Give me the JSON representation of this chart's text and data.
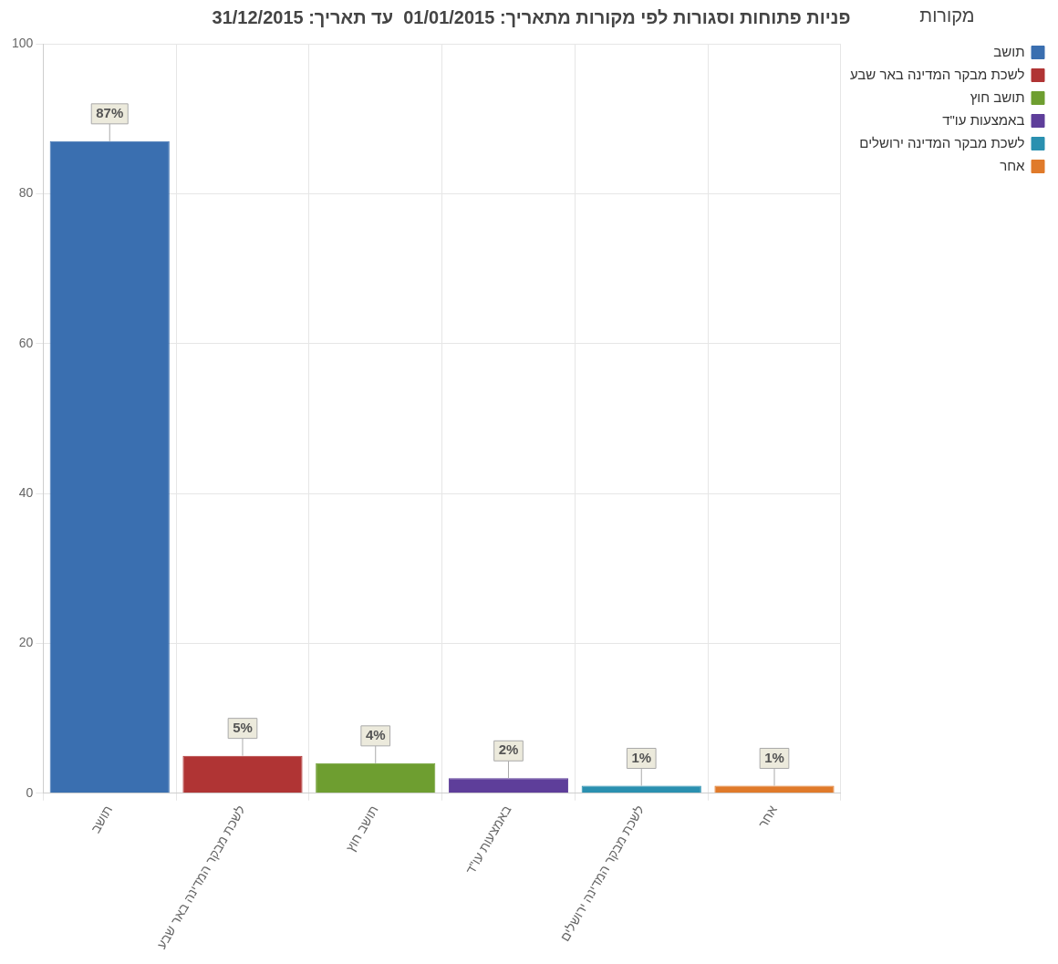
{
  "chart_data": {
    "type": "bar",
    "title": "פניות פתוחות וסגורות לפי מקורות מתאריך: 01/01/2015  עד תאריך: 31/12/2015",
    "categories": [
      "תושב",
      "לשכת מבקר המדינה באר שבע",
      "תושב חוץ",
      "באמצעות עו\"ד",
      "לשכת מבקר המדינה ירושלים",
      "אחר"
    ],
    "series": [
      {
        "name": "תושב",
        "color": "#3a6fb0",
        "values": [
          87,
          null,
          null,
          null,
          null,
          null
        ],
        "value_labels": [
          "87%",
          null,
          null,
          null,
          null,
          null
        ]
      },
      {
        "name": "לשכת מבקר המדינה באר שבע",
        "color": "#b03434",
        "values": [
          null,
          5,
          null,
          null,
          null,
          null
        ],
        "value_labels": [
          null,
          "5%",
          null,
          null,
          null,
          null
        ]
      },
      {
        "name": "תושב חוץ",
        "color": "#6e9e30",
        "values": [
          null,
          null,
          4,
          null,
          null,
          null
        ],
        "value_labels": [
          null,
          null,
          "4%",
          null,
          null,
          null
        ]
      },
      {
        "name": "באמצעות עו\"ד",
        "color": "#5e3e9a",
        "values": [
          null,
          null,
          null,
          2,
          null,
          null
        ],
        "value_labels": [
          null,
          null,
          null,
          "2%",
          null,
          null
        ]
      },
      {
        "name": "לשכת מבקר המדינה ירושלים",
        "color": "#2a90b0",
        "values": [
          null,
          null,
          null,
          null,
          1,
          null
        ],
        "value_labels": [
          null,
          null,
          null,
          null,
          "1%",
          null
        ]
      },
      {
        "name": "אחר",
        "color": "#e07a2a",
        "values": [
          null,
          null,
          null,
          null,
          null,
          1
        ],
        "value_labels": [
          null,
          null,
          null,
          null,
          null,
          "1%"
        ]
      }
    ],
    "ylim": [
      0,
      100
    ],
    "yticks": [
      0,
      20,
      40,
      60,
      80,
      100
    ],
    "grid": true,
    "legend": "top right",
    "legend_title": "מקורות"
  }
}
